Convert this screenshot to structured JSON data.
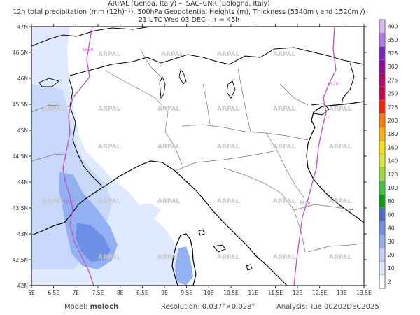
{
  "header": {
    "line1": "ARPAL (Genoa, Italy)  –  ISAC–CNR (Bologna, Italy)",
    "line2": "12h total precipitation (mm (12h)⁻¹), 500hPa Geopotential Heights (m), Thickness (5340m \\ and 1520m /)",
    "line3": "21 UTC Wed 03 DEC  –  τ = 45h"
  },
  "map": {
    "lon_ticks": [
      "6E",
      "6.5E",
      "7E",
      "7.5E",
      "8E",
      "8.5E",
      "9E",
      "9.5E",
      "10E",
      "10.5E",
      "11E",
      "11.5E",
      "12E",
      "12.5E",
      "13E",
      "13.5E"
    ],
    "lat_ticks": [
      "42N",
      "42.5N",
      "43N",
      "43.5N",
      "44N",
      "44.5N",
      "45N",
      "45.5N",
      "46N",
      "46.5N",
      "47N"
    ],
    "watermark": "ARPAL",
    "contour_labels": [
      "5520",
      "5520",
      "5520",
      "5520"
    ]
  },
  "colorbar": {
    "levels": [
      "2",
      "10",
      "20",
      "30",
      "40",
      "60",
      "80",
      "100",
      "120",
      "140",
      "160",
      "180",
      "200",
      "225",
      "250",
      "275",
      "300",
      "325",
      "350",
      "400"
    ],
    "colors": [
      "#ffffff",
      "#dfe9ff",
      "#bcd0fb",
      "#93b0f2",
      "#6f8fe6",
      "#4a6bd6",
      "#00a000",
      "#3cc43c",
      "#9bdc3c",
      "#d6e83c",
      "#ffe000",
      "#ffb000",
      "#ff7800",
      "#ff2000",
      "#d00040",
      "#b00070",
      "#9000a0",
      "#7a20c8",
      "#b078e8",
      "#d8b4f4"
    ]
  },
  "footer": {
    "model_label": "Model:",
    "model_value": "moloch",
    "resolution": "Resolution: 0.037°×0.028°",
    "analysis": "Analysis: Tue 00Z02DEC2025"
  }
}
